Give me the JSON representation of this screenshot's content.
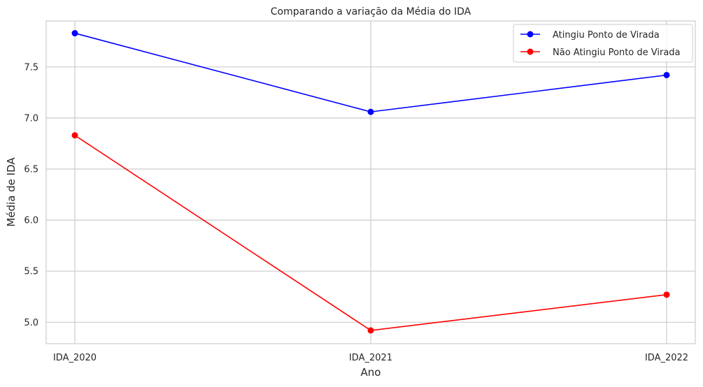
{
  "chart_data": {
    "type": "line",
    "title": "Comparando a variação da Média do IDA",
    "xlabel": "Ano",
    "ylabel": "Média de IDA",
    "categories": [
      "IDA_2020",
      "IDA_2021",
      "IDA_2022"
    ],
    "ylim": [
      4.79,
      7.95
    ],
    "yticks": [
      "5.0",
      "5.5",
      "6.0",
      "6.5",
      "7.0",
      "7.5"
    ],
    "grid": true,
    "legend_position": "top-right",
    "series": [
      {
        "name": "Atingiu Ponto de Virada",
        "color": "#0000ff",
        "values": [
          7.83,
          7.06,
          7.42
        ]
      },
      {
        "name": "Não Atingiu Ponto de Virada",
        "color": "#ff0000",
        "values": [
          6.83,
          4.92,
          5.27
        ]
      }
    ]
  }
}
